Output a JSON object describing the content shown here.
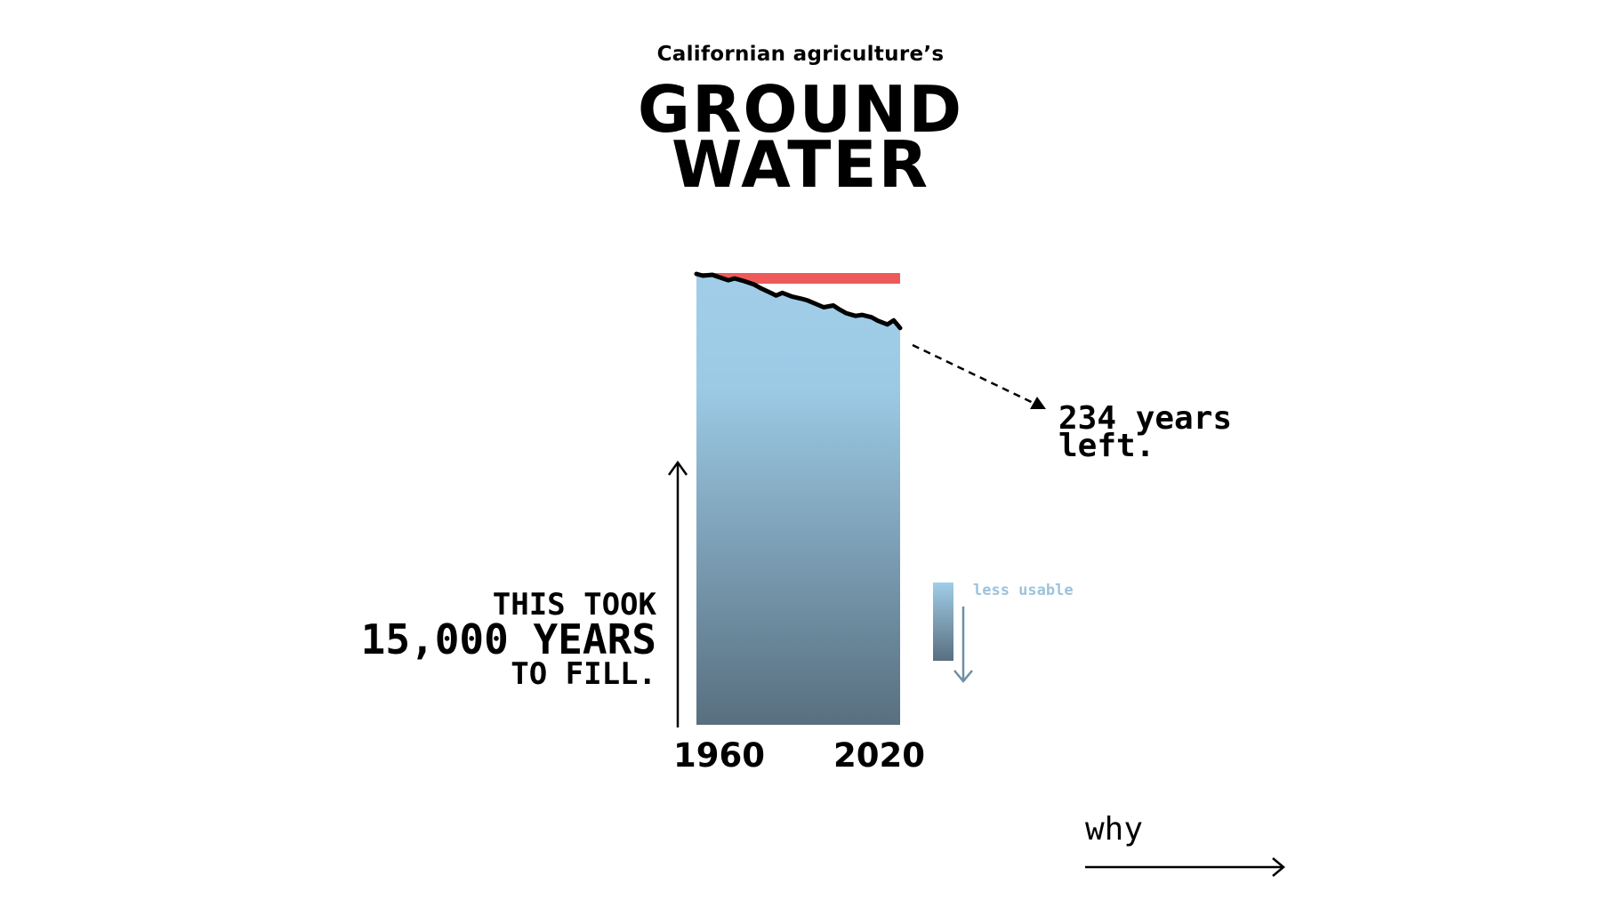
{
  "header": {
    "subtitle": "Californian agriculture’s",
    "title_line1": "GROUND",
    "title_line2": "WATER"
  },
  "chart_data": {
    "type": "area",
    "title": "GROUND WATER",
    "subtitle": "Californian agriculture’s",
    "x_ticks": [
      "1960",
      "2020"
    ],
    "xlim": [
      1960,
      2024
    ],
    "series": [
      {
        "x": [
          1960,
          1962,
          1965,
          1967,
          1970,
          1972,
          1975,
          1978,
          1980,
          1983,
          1985,
          1987,
          1990,
          1993,
          1995,
          1998,
          2000,
          2003,
          2005,
          2007,
          2010,
          2012,
          2015,
          2017,
          2020,
          2022,
          2024
        ],
        "values": [
          100,
          99.6,
          99.8,
          99.3,
          98.6,
          99.0,
          98.4,
          97.7,
          96.9,
          95.9,
          95.2,
          95.8,
          95.0,
          94.5,
          94.1,
          93.2,
          92.6,
          93.0,
          92.1,
          91.3,
          90.7,
          90.9,
          90.4,
          89.6,
          88.8,
          89.7,
          88.0
        ]
      }
    ],
    "ylim": [
      0,
      100
    ],
    "colors": {
      "full_level": "#ee5a5a",
      "fill_top": "#a1cde8",
      "fill_bottom": "#586f7f",
      "line": "#000000"
    }
  },
  "annotations": {
    "fill_time_line1": "THIS TOOK",
    "fill_time_line2": "15,000 YEARS",
    "fill_time_line3": "TO FILL.",
    "years_left_line1": "234 years",
    "years_left_line2": "left.",
    "less_usable": "less usable"
  },
  "nav": {
    "why_label": "why"
  }
}
